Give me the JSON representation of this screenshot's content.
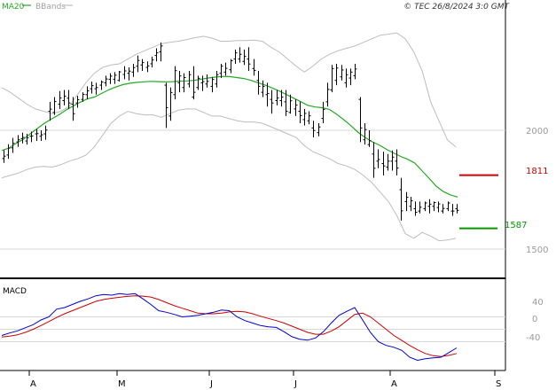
{
  "header": {
    "legend_ma": "MA20",
    "legend_bb": "BBands",
    "copyright": "© TEC 26/8/2024 3:0 GMT"
  },
  "colors": {
    "price": "#000000",
    "ma": "#22aa22",
    "bands": "#bdbdbd",
    "resistance": "#cc0000",
    "support": "#009900",
    "macd": "#0000cc",
    "signal": "#cc0000",
    "grid": "#d8d8d8"
  },
  "price_axis": {
    "ticks": [
      "2000",
      "1500"
    ]
  },
  "levels": {
    "resistance": "1811",
    "support": "1587"
  },
  "macd_panel": {
    "title": "MACD",
    "ticks": [
      "40",
      "0",
      "-40"
    ]
  },
  "time_axis": {
    "labels": [
      "A",
      "M",
      "J",
      "J",
      "A",
      "S"
    ]
  },
  "chart_data": {
    "type": "line",
    "y_range": [
      1450,
      2150
    ],
    "price_bars": [
      [
        1881,
        1916,
        1863,
        1891
      ],
      [
        1896,
        1941,
        1880,
        1925
      ],
      [
        1926,
        1968,
        1905,
        1945
      ],
      [
        1951,
        1980,
        1930,
        1960
      ],
      [
        1965,
        1990,
        1945,
        1970
      ],
      [
        1955,
        1985,
        1940,
        1969
      ],
      [
        1975,
        1995,
        1950,
        1976
      ],
      [
        1985,
        2005,
        1955,
        1986
      ],
      [
        1975,
        2000,
        1955,
        1981
      ],
      [
        1985,
        2020,
        1960,
        2001
      ],
      [
        2080,
        2120,
        2040,
        2089
      ],
      [
        2075,
        2140,
        2065,
        2121
      ],
      [
        2110,
        2165,
        2090,
        2136
      ],
      [
        2125,
        2170,
        2105,
        2144
      ],
      [
        2135,
        2170,
        2090,
        2115
      ],
      [
        2110,
        2140,
        2040,
        2070
      ],
      [
        2115,
        2145,
        2095,
        2129
      ],
      [
        2130,
        2160,
        2120,
        2151
      ],
      [
        2150,
        2185,
        2130,
        2166
      ],
      [
        2175,
        2205,
        2155,
        2188
      ],
      [
        2175,
        2200,
        2150,
        2180
      ],
      [
        2190,
        2210,
        2170,
        2203
      ],
      [
        2200,
        2230,
        2185,
        2216
      ],
      [
        2215,
        2240,
        2195,
        2228
      ],
      [
        2215,
        2245,
        2195,
        2232
      ],
      [
        2210,
        2250,
        2205,
        2246
      ],
      [
        2235,
        2270,
        2215,
        2250
      ],
      [
        2240,
        2265,
        2210,
        2249
      ],
      [
        2245,
        2280,
        2225,
        2264
      ],
      [
        2270,
        2315,
        2245,
        2294
      ],
      [
        2275,
        2300,
        2250,
        2285
      ],
      [
        2265,
        2290,
        2245,
        2271
      ],
      [
        2280,
        2310,
        2265,
        2296
      ],
      [
        2315,
        2345,
        2290,
        2326
      ],
      [
        2330,
        2370,
        2290,
        2355
      ],
      [
        2190,
        2200,
        2010,
        2095
      ],
      [
        2060,
        2180,
        2040,
        2159
      ],
      [
        2150,
        2270,
        2130,
        2251
      ],
      [
        2200,
        2250,
        2160,
        2229
      ],
      [
        2180,
        2240,
        2160,
        2222
      ],
      [
        2195,
        2250,
        2180,
        2234
      ],
      [
        2140,
        2270,
        2130,
        2160
      ],
      [
        2180,
        2230,
        2170,
        2219
      ],
      [
        2200,
        2230,
        2165,
        2205
      ],
      [
        2195,
        2235,
        2180,
        2206
      ],
      [
        2185,
        2225,
        2160,
        2214
      ],
      [
        2195,
        2250,
        2180,
        2234
      ],
      [
        2240,
        2280,
        2220,
        2270
      ],
      [
        2245,
        2285,
        2230,
        2261
      ],
      [
        2255,
        2300,
        2240,
        2293
      ],
      [
        2300,
        2340,
        2280,
        2326
      ],
      [
        2300,
        2350,
        2285,
        2320
      ],
      [
        2290,
        2340,
        2275,
        2311
      ],
      [
        2300,
        2350,
        2250,
        2279
      ],
      [
        2260,
        2300,
        2230,
        2252
      ],
      [
        2210,
        2250,
        2150,
        2185
      ],
      [
        2160,
        2210,
        2140,
        2185
      ],
      [
        2150,
        2200,
        2100,
        2155
      ],
      [
        2130,
        2170,
        2070,
        2115
      ],
      [
        2125,
        2170,
        2105,
        2136
      ],
      [
        2125,
        2170,
        2100,
        2140
      ],
      [
        2120,
        2170,
        2060,
        2080
      ],
      [
        2075,
        2150,
        2070,
        2124
      ],
      [
        2090,
        2130,
        2060,
        2106
      ],
      [
        2080,
        2120,
        2030,
        2062
      ],
      [
        2045,
        2090,
        2020,
        2071
      ],
      [
        2040,
        2080,
        2025,
        2061
      ],
      [
        2010,
        2040,
        1970,
        1999
      ],
      [
        1990,
        2030,
        1975,
        2014
      ],
      [
        2050,
        2120,
        2030,
        2088
      ],
      [
        2120,
        2200,
        2100,
        2172
      ],
      [
        2170,
        2275,
        2160,
        2260
      ],
      [
        2210,
        2280,
        2190,
        2262
      ],
      [
        2225,
        2275,
        2210,
        2254
      ],
      [
        2200,
        2260,
        2180,
        2234
      ],
      [
        2220,
        2260,
        2190,
        2245
      ],
      [
        2230,
        2280,
        2215,
        2258
      ],
      [
        2130,
        2140,
        1950,
        2010
      ],
      [
        1960,
        2030,
        1940,
        2003
      ],
      [
        1940,
        2000,
        1930,
        1956
      ],
      [
        1900,
        1950,
        1800,
        1840
      ],
      [
        1870,
        1920,
        1840,
        1877
      ],
      [
        1860,
        1910,
        1810,
        1850
      ],
      [
        1845,
        1900,
        1830,
        1870
      ],
      [
        1870,
        1915,
        1830,
        1887
      ],
      [
        1870,
        1920,
        1810,
        1841
      ],
      [
        1750,
        1800,
        1620,
        1661
      ],
      [
        1700,
        1740,
        1660,
        1718
      ],
      [
        1680,
        1720,
        1660,
        1703
      ],
      [
        1670,
        1700,
        1640,
        1655
      ],
      [
        1660,
        1700,
        1650,
        1676
      ],
      [
        1670,
        1700,
        1660,
        1694
      ],
      [
        1680,
        1710,
        1650,
        1689
      ],
      [
        1680,
        1700,
        1660,
        1696
      ],
      [
        1675,
        1700,
        1655,
        1690
      ],
      [
        1660,
        1690,
        1650,
        1671
      ],
      [
        1670,
        1700,
        1660,
        1694
      ],
      [
        1660,
        1690,
        1640,
        1660
      ],
      [
        1670,
        1690,
        1650,
        1663
      ]
    ],
    "ma20": [
      1915,
      1925,
      1945,
      1962,
      1985,
      2008,
      2030,
      2048,
      2065,
      2085,
      2102,
      2118,
      2132,
      2140,
      2155,
      2170,
      2182,
      2192,
      2198,
      2202,
      2204,
      2206,
      2205,
      2204,
      2205,
      2207,
      2208,
      2210,
      2215,
      2220,
      2224,
      2227,
      2226,
      2222,
      2218,
      2210,
      2200,
      2190,
      2178,
      2165,
      2150,
      2135,
      2120,
      2105,
      2098,
      2095,
      2088,
      2068,
      2045,
      2020,
      1992,
      1970,
      1952,
      1938,
      1920,
      1905,
      1890,
      1878,
      1862,
      1830,
      1798,
      1765,
      1742,
      1728,
      1719
    ],
    "bb_upper": [
      2180,
      2160,
      2135,
      2110,
      2090,
      2080,
      2070,
      2080,
      2100,
      2150,
      2200,
      2240,
      2265,
      2275,
      2280,
      2300,
      2320,
      2335,
      2350,
      2365,
      2370,
      2375,
      2382,
      2390,
      2396,
      2388,
      2375,
      2375,
      2378,
      2378,
      2380,
      2375,
      2350,
      2330,
      2300,
      2270,
      2245,
      2270,
      2300,
      2320,
      2335,
      2345,
      2355,
      2370,
      2385,
      2400,
      2405,
      2410,
      2385,
      2330,
      2250,
      2120,
      2040,
      1960,
      1930
    ],
    "bb_lower": [
      1800,
      1810,
      1820,
      1835,
      1845,
      1848,
      1845,
      1855,
      1870,
      1880,
      1895,
      1930,
      1980,
      2030,
      2060,
      2080,
      2070,
      2065,
      2065,
      2055,
      2070,
      2085,
      2090,
      2090,
      2075,
      2060,
      2060,
      2050,
      2040,
      2035,
      2035,
      2030,
      2015,
      2000,
      1985,
      1970,
      1935,
      1910,
      1895,
      1880,
      1860,
      1850,
      1835,
      1810,
      1780,
      1740,
      1700,
      1640,
      1565,
      1545,
      1570,
      1555,
      1535,
      1538,
      1545
    ],
    "macd": [
      -20,
      -12,
      -5,
      5,
      15,
      30,
      40,
      65,
      70,
      80,
      90,
      98,
      108,
      112,
      110,
      115,
      112,
      115,
      98,
      80,
      60,
      55,
      48,
      40,
      42,
      45,
      50,
      55,
      62,
      60,
      40,
      28,
      20,
      12,
      8,
      6,
      -8,
      -24,
      -32,
      -35,
      -28,
      -8,
      20,
      45,
      58,
      70,
      30,
      -10,
      -40,
      -52,
      -58,
      -68,
      -90,
      -100,
      -95,
      -92,
      -90,
      -75,
      -60
    ],
    "signal": [
      -25,
      -22,
      -18,
      -10,
      0,
      12,
      25,
      38,
      50,
      60,
      70,
      80,
      90,
      96,
      100,
      103,
      106,
      108,
      107,
      104,
      96,
      86,
      76,
      68,
      60,
      52,
      50,
      50,
      52,
      56,
      58,
      56,
      50,
      42,
      35,
      28,
      20,
      10,
      0,
      -10,
      -16,
      -16,
      -6,
      8,
      28,
      48,
      52,
      40,
      20,
      0,
      -20,
      -36,
      -52,
      -66,
      -78,
      -85,
      -88,
      -84,
      -78
    ],
    "macd_range": [
      -110,
      130
    ],
    "x_labels": [
      "A",
      "M",
      "J",
      "J",
      "A",
      "S"
    ]
  }
}
